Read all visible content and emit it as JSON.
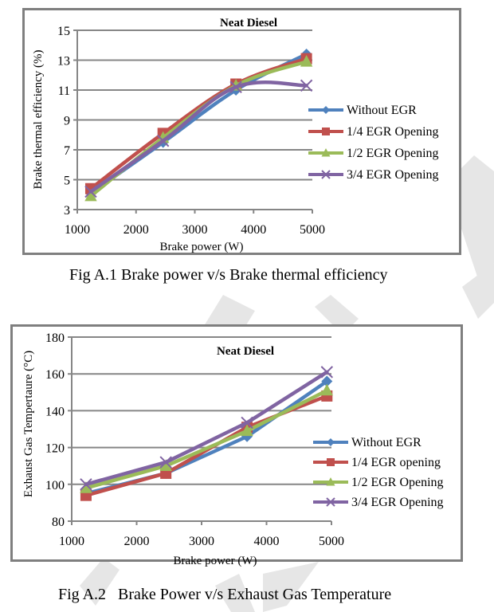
{
  "captions": {
    "fig1": "Fig A.1 Brake power v/s Brake thermal efficiency",
    "fig2": "Fig A.2   Brake Power v/s Exhaust Gas Temperature"
  },
  "series_style": [
    {
      "color": "#4f81bd",
      "marker": "diamond"
    },
    {
      "color": "#c0504d",
      "marker": "square"
    },
    {
      "color": "#9bbb59",
      "marker": "triangle"
    },
    {
      "color": "#8064a2",
      "marker": "x"
    }
  ],
  "gridline_color": "#868686",
  "chart_data": [
    {
      "type": "line",
      "title": "Neat Diesel",
      "xlabel": "Brake power (W)",
      "ylabel": "Brake thermal efficiency (%)",
      "xlim": [
        1000,
        5000
      ],
      "ylim": [
        3,
        15
      ],
      "xticks": [
        1000,
        2000,
        3000,
        4000,
        5000
      ],
      "yticks": [
        3,
        5,
        7,
        9,
        11,
        13,
        15
      ],
      "grid": true,
      "legend_position": "right",
      "smooth": true,
      "x": [
        1230,
        2460,
        3700,
        4900
      ],
      "series": [
        {
          "name": "Without EGR",
          "values": [
            4.1,
            7.5,
            11.0,
            13.4
          ]
        },
        {
          "name": "1/4 EGR Opening",
          "values": [
            4.4,
            8.1,
            11.4,
            13.1
          ]
        },
        {
          "name": "1/2 EGR Opening",
          "values": [
            3.9,
            7.8,
            11.3,
            12.9
          ]
        },
        {
          "name": "3/4 EGR Opening",
          "values": [
            4.2,
            7.6,
            11.2,
            11.3
          ]
        }
      ]
    },
    {
      "type": "line",
      "title": "Neat Diesel",
      "xlabel": "Brake power (W)",
      "ylabel": "Exhaust Gas Tempertaure  (°C)",
      "xlim": [
        1000,
        5000
      ],
      "ylim": [
        80,
        180
      ],
      "xticks": [
        1000,
        2000,
        3000,
        4000,
        5000
      ],
      "yticks": [
        80,
        100,
        120,
        140,
        160,
        180
      ],
      "grid": true,
      "legend_position": "right",
      "smooth": false,
      "x": [
        1220,
        2450,
        3700,
        4930
      ],
      "series": [
        {
          "name": "Without EGR",
          "values": [
            95,
            106,
            126,
            156
          ]
        },
        {
          "name": "1/4 EGR opening",
          "values": [
            94,
            106,
            131,
            148
          ]
        },
        {
          "name": "1/2 EGR Opening",
          "values": [
            98,
            110,
            129,
            151
          ]
        },
        {
          "name": "3/4 EGR Opening",
          "values": [
            100,
            112,
            133.5,
            161
          ]
        }
      ]
    }
  ]
}
